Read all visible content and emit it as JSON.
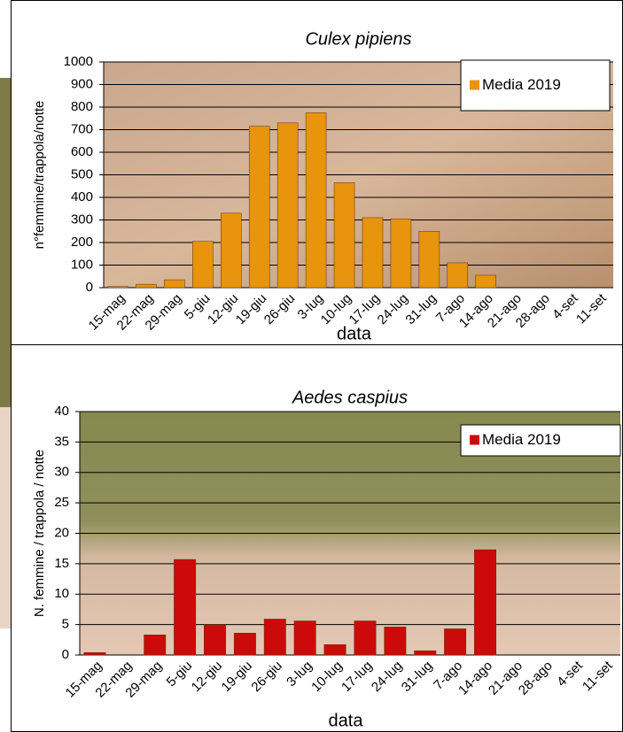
{
  "chart_data": [
    {
      "type": "bar",
      "title": "Culex pipiens",
      "xlabel": "data",
      "ylabel": "n°femmine/trappola/notte",
      "categories": [
        "15-mag",
        "22-mag",
        "29-mag",
        "5-giu",
        "12-giu",
        "19-giu",
        "26-giu",
        "3-lug",
        "10-lug",
        "17-lug",
        "24-lug",
        "31-lug",
        "7-ago",
        "14-ago",
        "21-ago",
        "28-ago",
        "4-set",
        "11-set"
      ],
      "series": [
        {
          "name": "Media 2019",
          "color": "#e8940c",
          "values": [
            5,
            15,
            35,
            205,
            330,
            715,
            730,
            775,
            465,
            310,
            305,
            250,
            110,
            55,
            0,
            0,
            0,
            0
          ]
        }
      ],
      "ylim": [
        0,
        1000
      ],
      "yticks": [
        0,
        100,
        200,
        300,
        400,
        500,
        600,
        700,
        800,
        900,
        1000
      ],
      "grid": true,
      "legend": "top-right"
    },
    {
      "type": "bar",
      "title": "Aedes caspius",
      "xlabel": "data",
      "ylabel": "N. femmine / trappola / notte",
      "categories": [
        "15-mag",
        "22-mag",
        "29-mag",
        "5-giu",
        "12-giu",
        "19-giu",
        "26-giu",
        "3-lug",
        "10-lug",
        "17-lug",
        "24-lug",
        "31-lug",
        "7-ago",
        "14-ago",
        "21-ago",
        "28-ago",
        "4-set",
        "11-set"
      ],
      "series": [
        {
          "name": "Media 2019",
          "color": "#cc0a0a",
          "values": [
            0.4,
            0,
            3.3,
            15.7,
            5.0,
            3.6,
            5.9,
            5.6,
            1.7,
            5.6,
            4.6,
            0.7,
            4.3,
            17.3,
            0,
            0,
            0,
            0
          ]
        }
      ],
      "ylim": [
        0,
        40
      ],
      "yticks": [
        0,
        5,
        10,
        15,
        20,
        25,
        30,
        35,
        40
      ],
      "grid": true,
      "legend": "top-right"
    }
  ]
}
